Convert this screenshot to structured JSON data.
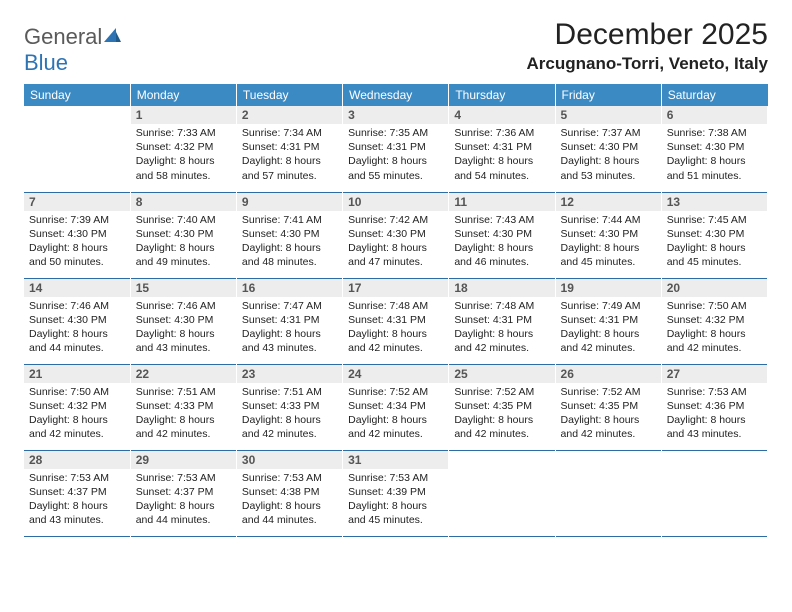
{
  "brand": {
    "part1": "General",
    "part2": "Blue"
  },
  "title": "December 2025",
  "location": "Arcugnano-Torri, Veneto, Italy",
  "colors": {
    "header_bg": "#3b8ac4",
    "header_text": "#ffffff",
    "daynum_bg": "#ededed",
    "daynum_text": "#555555",
    "row_border": "#2e6da4",
    "logo_gray": "#5a5a5a",
    "logo_blue": "#2e74b5"
  },
  "weekdays": [
    "Sunday",
    "Monday",
    "Tuesday",
    "Wednesday",
    "Thursday",
    "Friday",
    "Saturday"
  ],
  "weeks": [
    [
      {
        "n": "",
        "sr": "",
        "ss": "",
        "dl": "",
        "empty": true
      },
      {
        "n": "1",
        "sr": "Sunrise: 7:33 AM",
        "ss": "Sunset: 4:32 PM",
        "dl": "Daylight: 8 hours and 58 minutes."
      },
      {
        "n": "2",
        "sr": "Sunrise: 7:34 AM",
        "ss": "Sunset: 4:31 PM",
        "dl": "Daylight: 8 hours and 57 minutes."
      },
      {
        "n": "3",
        "sr": "Sunrise: 7:35 AM",
        "ss": "Sunset: 4:31 PM",
        "dl": "Daylight: 8 hours and 55 minutes."
      },
      {
        "n": "4",
        "sr": "Sunrise: 7:36 AM",
        "ss": "Sunset: 4:31 PM",
        "dl": "Daylight: 8 hours and 54 minutes."
      },
      {
        "n": "5",
        "sr": "Sunrise: 7:37 AM",
        "ss": "Sunset: 4:30 PM",
        "dl": "Daylight: 8 hours and 53 minutes."
      },
      {
        "n": "6",
        "sr": "Sunrise: 7:38 AM",
        "ss": "Sunset: 4:30 PM",
        "dl": "Daylight: 8 hours and 51 minutes."
      }
    ],
    [
      {
        "n": "7",
        "sr": "Sunrise: 7:39 AM",
        "ss": "Sunset: 4:30 PM",
        "dl": "Daylight: 8 hours and 50 minutes."
      },
      {
        "n": "8",
        "sr": "Sunrise: 7:40 AM",
        "ss": "Sunset: 4:30 PM",
        "dl": "Daylight: 8 hours and 49 minutes."
      },
      {
        "n": "9",
        "sr": "Sunrise: 7:41 AM",
        "ss": "Sunset: 4:30 PM",
        "dl": "Daylight: 8 hours and 48 minutes."
      },
      {
        "n": "10",
        "sr": "Sunrise: 7:42 AM",
        "ss": "Sunset: 4:30 PM",
        "dl": "Daylight: 8 hours and 47 minutes."
      },
      {
        "n": "11",
        "sr": "Sunrise: 7:43 AM",
        "ss": "Sunset: 4:30 PM",
        "dl": "Daylight: 8 hours and 46 minutes."
      },
      {
        "n": "12",
        "sr": "Sunrise: 7:44 AM",
        "ss": "Sunset: 4:30 PM",
        "dl": "Daylight: 8 hours and 45 minutes."
      },
      {
        "n": "13",
        "sr": "Sunrise: 7:45 AM",
        "ss": "Sunset: 4:30 PM",
        "dl": "Daylight: 8 hours and 45 minutes."
      }
    ],
    [
      {
        "n": "14",
        "sr": "Sunrise: 7:46 AM",
        "ss": "Sunset: 4:30 PM",
        "dl": "Daylight: 8 hours and 44 minutes."
      },
      {
        "n": "15",
        "sr": "Sunrise: 7:46 AM",
        "ss": "Sunset: 4:30 PM",
        "dl": "Daylight: 8 hours and 43 minutes."
      },
      {
        "n": "16",
        "sr": "Sunrise: 7:47 AM",
        "ss": "Sunset: 4:31 PM",
        "dl": "Daylight: 8 hours and 43 minutes."
      },
      {
        "n": "17",
        "sr": "Sunrise: 7:48 AM",
        "ss": "Sunset: 4:31 PM",
        "dl": "Daylight: 8 hours and 42 minutes."
      },
      {
        "n": "18",
        "sr": "Sunrise: 7:48 AM",
        "ss": "Sunset: 4:31 PM",
        "dl": "Daylight: 8 hours and 42 minutes."
      },
      {
        "n": "19",
        "sr": "Sunrise: 7:49 AM",
        "ss": "Sunset: 4:31 PM",
        "dl": "Daylight: 8 hours and 42 minutes."
      },
      {
        "n": "20",
        "sr": "Sunrise: 7:50 AM",
        "ss": "Sunset: 4:32 PM",
        "dl": "Daylight: 8 hours and 42 minutes."
      }
    ],
    [
      {
        "n": "21",
        "sr": "Sunrise: 7:50 AM",
        "ss": "Sunset: 4:32 PM",
        "dl": "Daylight: 8 hours and 42 minutes."
      },
      {
        "n": "22",
        "sr": "Sunrise: 7:51 AM",
        "ss": "Sunset: 4:33 PM",
        "dl": "Daylight: 8 hours and 42 minutes."
      },
      {
        "n": "23",
        "sr": "Sunrise: 7:51 AM",
        "ss": "Sunset: 4:33 PM",
        "dl": "Daylight: 8 hours and 42 minutes."
      },
      {
        "n": "24",
        "sr": "Sunrise: 7:52 AM",
        "ss": "Sunset: 4:34 PM",
        "dl": "Daylight: 8 hours and 42 minutes."
      },
      {
        "n": "25",
        "sr": "Sunrise: 7:52 AM",
        "ss": "Sunset: 4:35 PM",
        "dl": "Daylight: 8 hours and 42 minutes."
      },
      {
        "n": "26",
        "sr": "Sunrise: 7:52 AM",
        "ss": "Sunset: 4:35 PM",
        "dl": "Daylight: 8 hours and 42 minutes."
      },
      {
        "n": "27",
        "sr": "Sunrise: 7:53 AM",
        "ss": "Sunset: 4:36 PM",
        "dl": "Daylight: 8 hours and 43 minutes."
      }
    ],
    [
      {
        "n": "28",
        "sr": "Sunrise: 7:53 AM",
        "ss": "Sunset: 4:37 PM",
        "dl": "Daylight: 8 hours and 43 minutes."
      },
      {
        "n": "29",
        "sr": "Sunrise: 7:53 AM",
        "ss": "Sunset: 4:37 PM",
        "dl": "Daylight: 8 hours and 44 minutes."
      },
      {
        "n": "30",
        "sr": "Sunrise: 7:53 AM",
        "ss": "Sunset: 4:38 PM",
        "dl": "Daylight: 8 hours and 44 minutes."
      },
      {
        "n": "31",
        "sr": "Sunrise: 7:53 AM",
        "ss": "Sunset: 4:39 PM",
        "dl": "Daylight: 8 hours and 45 minutes."
      },
      {
        "n": "",
        "sr": "",
        "ss": "",
        "dl": "",
        "empty": true
      },
      {
        "n": "",
        "sr": "",
        "ss": "",
        "dl": "",
        "empty": true
      },
      {
        "n": "",
        "sr": "",
        "ss": "",
        "dl": "",
        "empty": true
      }
    ]
  ]
}
